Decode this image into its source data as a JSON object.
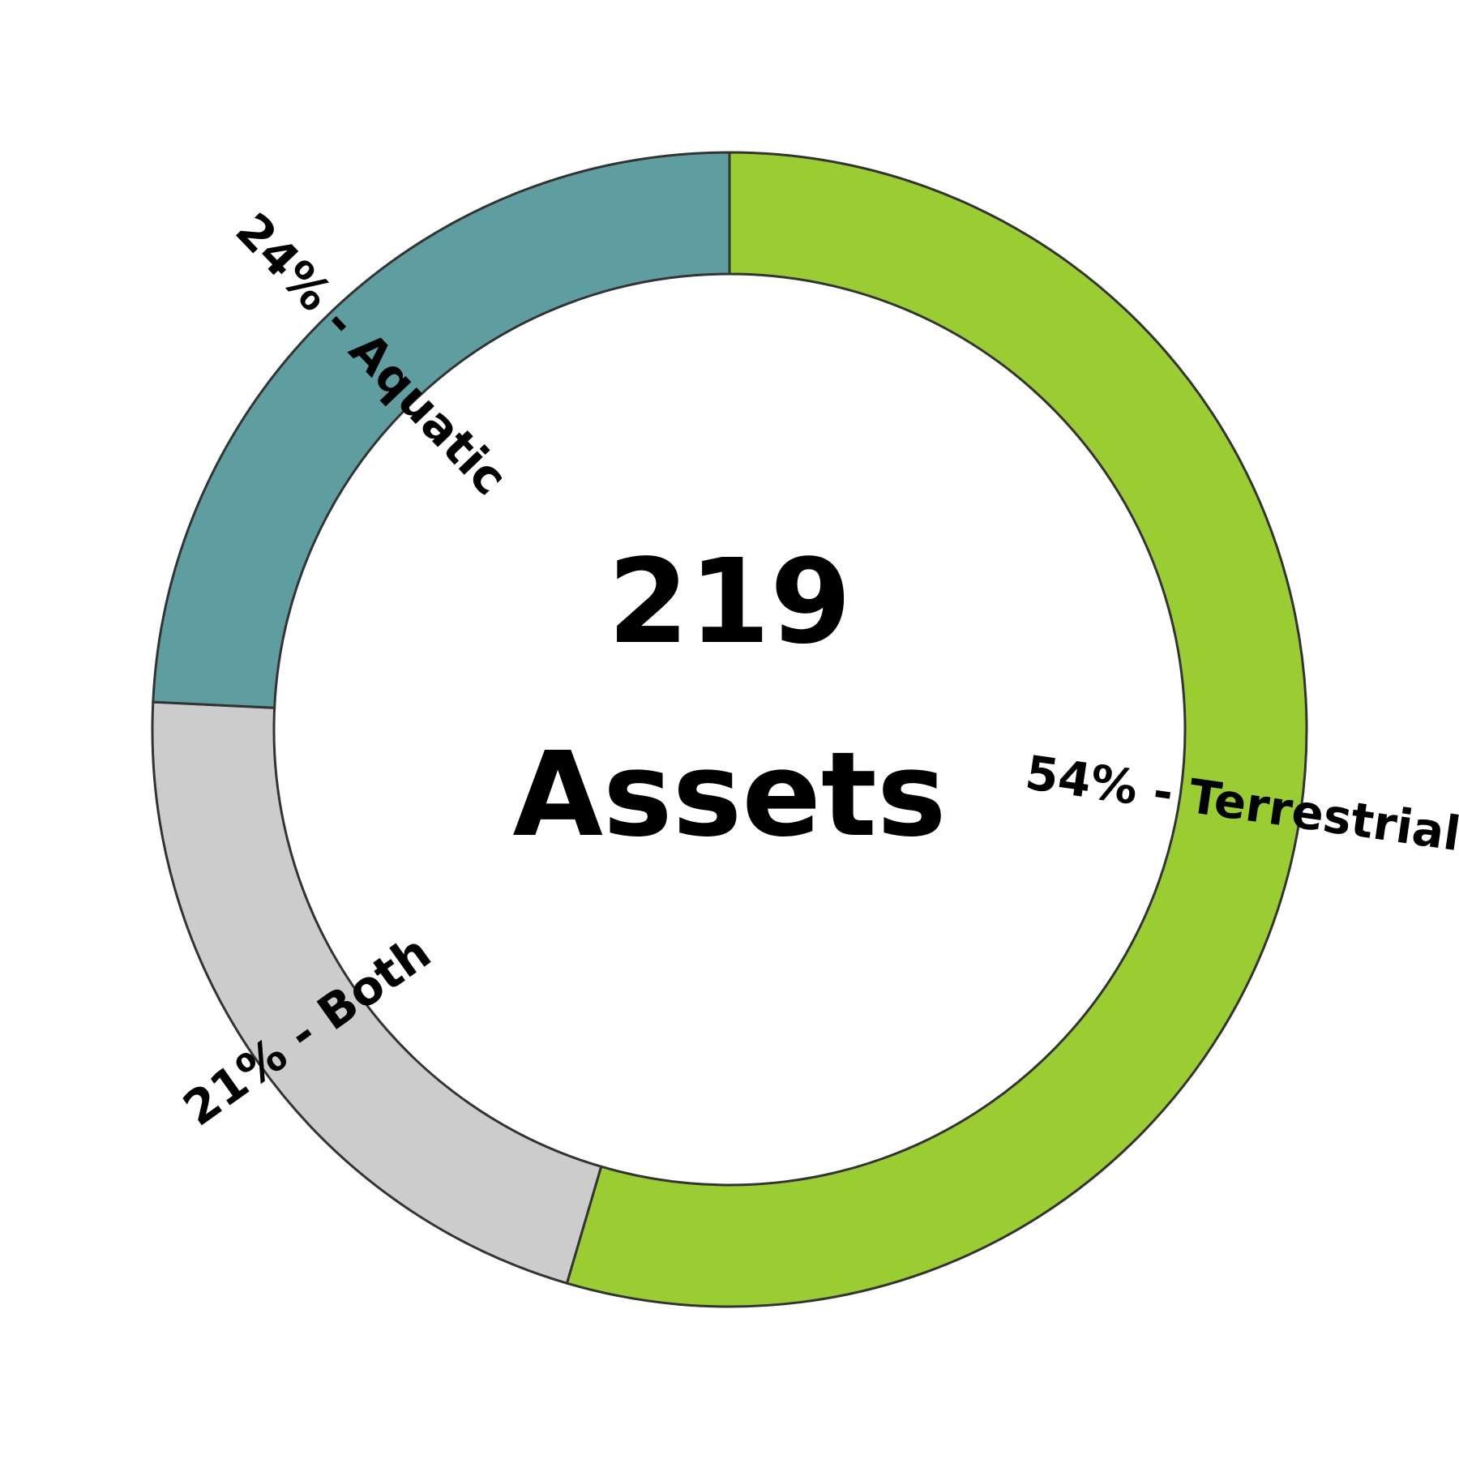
{
  "chart_data": {
    "type": "pie",
    "variant": "donut",
    "center": {
      "value": "219",
      "label": "Assets"
    },
    "slices": [
      {
        "name": "Terrestrial",
        "percent": 54,
        "label": "54% - Terrestrial",
        "color": "#9acd32"
      },
      {
        "name": "Both",
        "percent": 21,
        "label": "21% - Both",
        "color": "#cccccc"
      },
      {
        "name": "Aquatic",
        "percent": 24,
        "label": "24% - Aquatic",
        "color": "#5f9ea0"
      }
    ],
    "start": "top",
    "direction": "clockwise",
    "edge_color": "#333333"
  }
}
